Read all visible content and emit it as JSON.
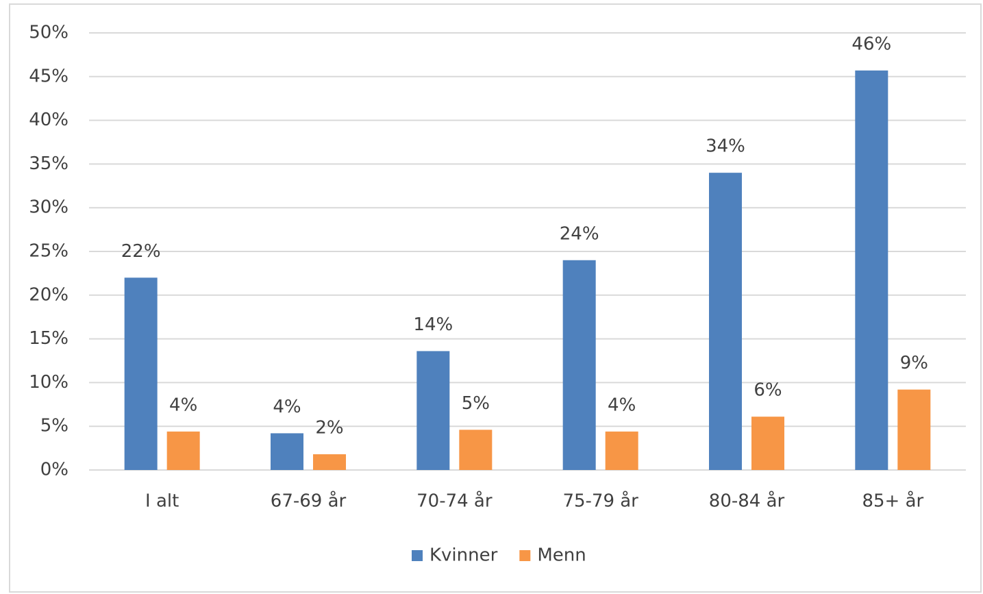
{
  "chart_data": {
    "type": "bar",
    "categories": [
      "I alt",
      "67-69 år",
      "70-74 år",
      "75-79 år",
      "80-84 år",
      "85+ år"
    ],
    "series": [
      {
        "name": "Kvinner",
        "color": "#4f81bd",
        "values": [
          22,
          4.2,
          13.6,
          24,
          34,
          45.7
        ],
        "value_labels": [
          "22%",
          "4%",
          "14%",
          "24%",
          "34%",
          "46%"
        ]
      },
      {
        "name": "Menn",
        "color": "#f79646",
        "values": [
          4.4,
          1.8,
          4.6,
          4.4,
          6.1,
          9.2
        ],
        "value_labels": [
          "4%",
          "2%",
          "5%",
          "4%",
          "6%",
          "9%"
        ]
      }
    ],
    "ylim": [
      0,
      50
    ],
    "yticks": [
      {
        "value": 0,
        "label": "0%"
      },
      {
        "value": 5,
        "label": "5%"
      },
      {
        "value": 10,
        "label": "10%"
      },
      {
        "value": 15,
        "label": "15%"
      },
      {
        "value": 20,
        "label": "20%"
      },
      {
        "value": 25,
        "label": "25%"
      },
      {
        "value": 30,
        "label": "30%"
      },
      {
        "value": 35,
        "label": "35%"
      },
      {
        "value": 40,
        "label": "40%"
      },
      {
        "value": 45,
        "label": "45%"
      },
      {
        "value": 50,
        "label": "50%"
      }
    ],
    "grid": true,
    "legend": "bottom"
  }
}
